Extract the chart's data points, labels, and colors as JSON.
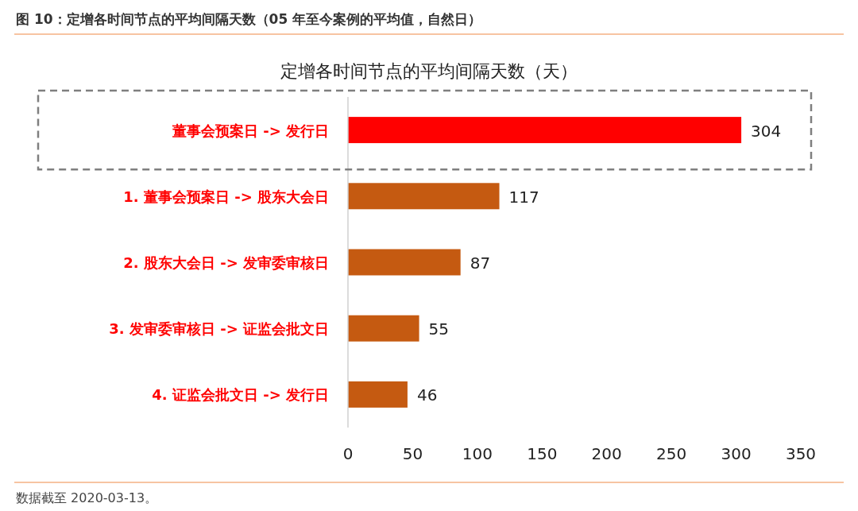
{
  "chart_data": {
    "type": "bar",
    "orientation": "horizontal",
    "title": "图 10：定增各时间节点的平均间隔天数（05 年至今案例的平均值，自然日）",
    "subtitle": "定增各时间节点的平均间隔天数（天）",
    "categories": [
      "董事会预案日 -> 发行日",
      "1. 董事会预案日 -> 股东大会日",
      "2. 股东大会日 -> 发审委审核日",
      "3. 发审委审核日 -> 证监会批文日",
      "4. 证监会批文日 -> 发行日"
    ],
    "values": [
      304,
      117,
      87,
      55,
      46
    ],
    "colors": [
      "#ff0000",
      "#c55a11",
      "#c55a11",
      "#c55a11",
      "#c55a11"
    ],
    "xlim": [
      0,
      350
    ],
    "xticks": [
      0,
      50,
      100,
      150,
      200,
      250,
      300,
      350
    ],
    "grid": false,
    "data_labels": true,
    "annotations": [
      "数据截至 2020-03-13。"
    ]
  }
}
